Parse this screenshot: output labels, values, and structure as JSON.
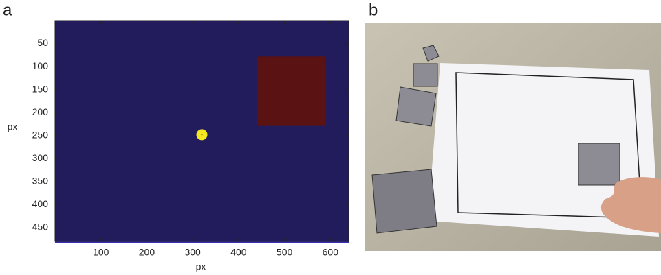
{
  "panel_labels": [
    "a",
    "b"
  ],
  "chart_data": {
    "type": "image",
    "xlabel": "px",
    "ylabel": "px",
    "xlim": [
      0,
      640
    ],
    "ylim": [
      480,
      0
    ],
    "xticks": [
      100,
      200,
      300,
      400,
      500,
      600
    ],
    "yticks": [
      50,
      100,
      150,
      200,
      250,
      300,
      350,
      400,
      450
    ],
    "background": "#221b5c",
    "rectangles": [
      {
        "x": [
          440,
          590
        ],
        "y": [
          78,
          229
        ],
        "color": "#5a1212"
      }
    ],
    "points": [
      {
        "x": 320,
        "y": 248,
        "color": "#f5e61d"
      }
    ]
  }
}
